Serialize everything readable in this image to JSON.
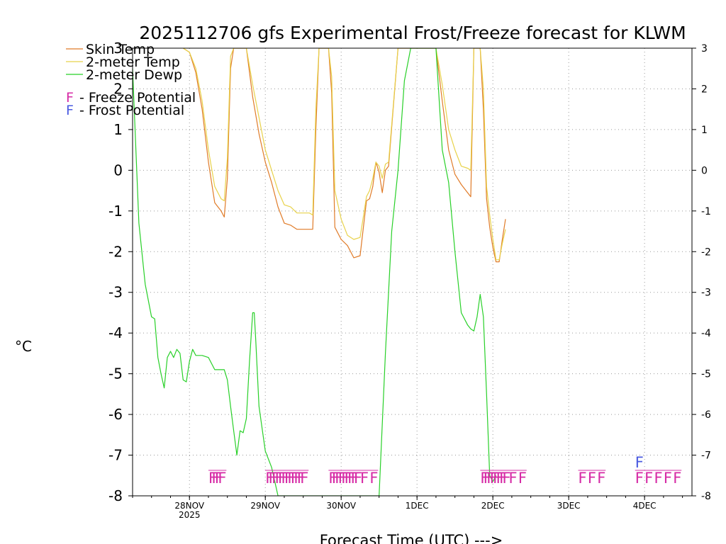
{
  "chart_data": {
    "type": "line",
    "title": "2025112706 gfs Experimental Frost/Freeze forecast for KLWM",
    "xlabel": "Forecast Time (UTC) --->",
    "ylabel": "°C",
    "ylim": [
      -8,
      3
    ],
    "xlim": [
      0,
      177
    ],
    "x_units": "hours since 2025-11-27 06 UTC",
    "grid": true,
    "y_ticks": [
      "-8",
      "-7",
      "-6",
      "-5",
      "-4",
      "-3",
      "-2",
      "-1",
      "0",
      "1",
      "2",
      "3"
    ],
    "x_ticks": [
      {
        "hour": 18,
        "label": "28NOV",
        "sub": "2025"
      },
      {
        "hour": 42,
        "label": "29NOV",
        "sub": ""
      },
      {
        "hour": 66,
        "label": "30NOV",
        "sub": ""
      },
      {
        "hour": 90,
        "label": "1DEC",
        "sub": ""
      },
      {
        "hour": 114,
        "label": "2DEC",
        "sub": ""
      },
      {
        "hour": 138,
        "label": "3DEC",
        "sub": ""
      },
      {
        "hour": 162,
        "label": "4DEC",
        "sub": ""
      }
    ],
    "series": [
      {
        "name": "Skin Temp",
        "color": "#e07b28",
        "x": [
          16,
          18,
          20,
          22,
          24,
          26,
          28,
          29,
          30,
          31,
          32,
          33,
          36,
          38,
          40,
          42,
          44,
          46,
          48,
          50,
          52,
          54,
          56,
          57,
          58,
          59,
          60,
          61,
          62,
          63,
          64,
          66,
          68,
          70,
          72,
          74,
          75,
          76,
          77,
          78,
          79,
          80,
          81,
          84,
          86,
          88,
          90,
          91,
          92,
          93,
          94,
          96,
          98,
          100,
          102,
          104,
          106,
          107,
          108,
          109,
          110,
          111,
          112,
          113,
          114,
          115,
          116,
          117,
          118
        ],
        "y": [
          3.0,
          2.9,
          2.4,
          1.5,
          0.2,
          -0.8,
          -1.0,
          -1.15,
          -0.2,
          2.5,
          3.0,
          3.0,
          3.0,
          1.8,
          0.9,
          0.2,
          -0.3,
          -0.9,
          -1.3,
          -1.35,
          -1.45,
          -1.45,
          -1.45,
          -1.45,
          1.0,
          3.0,
          3.0,
          3.0,
          3.0,
          1.9,
          -1.4,
          -1.7,
          -1.85,
          -2.15,
          -2.1,
          -0.75,
          -0.7,
          -0.4,
          0.2,
          -0.05,
          -0.55,
          0.0,
          0.1,
          3.0,
          3.0,
          3.0,
          3.0,
          3.0,
          3.0,
          3.0,
          3.0,
          3.0,
          1.7,
          0.5,
          -0.1,
          -0.35,
          -0.55,
          -0.65,
          3.0,
          3.0,
          3.0,
          1.5,
          -0.7,
          -1.4,
          -1.9,
          -2.25,
          -2.25,
          -1.7,
          -1.2
        ]
      },
      {
        "name": "2-meter Temp",
        "color": "#e8d24a",
        "x": [
          16,
          18,
          20,
          22,
          24,
          26,
          28,
          29,
          30,
          31,
          32,
          33,
          36,
          38,
          40,
          42,
          44,
          46,
          48,
          50,
          52,
          54,
          56,
          57,
          58,
          59,
          60,
          61,
          62,
          63,
          64,
          66,
          68,
          70,
          72,
          74,
          75,
          76,
          77,
          78,
          79,
          80,
          81,
          84,
          86,
          88,
          90,
          91,
          92,
          93,
          94,
          96,
          98,
          100,
          102,
          104,
          106,
          107,
          108,
          109,
          110,
          111,
          112,
          113,
          114,
          115,
          116,
          117,
          118
        ],
        "y": [
          3.0,
          2.9,
          2.5,
          1.7,
          0.5,
          -0.4,
          -0.7,
          -0.75,
          0.3,
          2.8,
          3.0,
          3.0,
          3.0,
          2.1,
          1.3,
          0.5,
          0.0,
          -0.5,
          -0.85,
          -0.9,
          -1.05,
          -1.05,
          -1.05,
          -1.1,
          1.5,
          3.0,
          3.0,
          3.0,
          3.0,
          2.3,
          -0.5,
          -1.2,
          -1.6,
          -1.7,
          -1.65,
          -0.65,
          -0.5,
          -0.2,
          0.2,
          0.1,
          -0.2,
          0.15,
          0.2,
          3.0,
          3.0,
          3.0,
          3.0,
          3.0,
          3.0,
          3.0,
          3.0,
          3.0,
          2.1,
          1.0,
          0.5,
          0.1,
          0.05,
          0.0,
          3.0,
          3.0,
          3.0,
          2.0,
          -0.4,
          -1.1,
          -1.7,
          -2.2,
          -2.2,
          -1.8,
          -1.45
        ]
      },
      {
        "name": "2-meter Dewp",
        "color": "#28d028",
        "x": [
          0,
          2,
          4,
          6,
          7,
          8,
          9,
          10,
          11,
          12,
          13,
          14,
          15,
          16,
          17,
          18,
          19,
          20,
          21,
          22,
          24,
          26,
          28,
          29,
          30,
          31,
          32,
          33,
          34,
          35,
          36,
          37,
          38,
          38.5,
          39,
          40,
          42,
          44,
          46,
          78,
          80,
          82,
          84,
          86,
          88,
          90,
          92,
          94,
          96,
          98,
          100,
          102,
          104,
          106,
          107,
          108,
          109,
          110,
          111,
          112,
          113,
          114,
          115
        ],
        "y": [
          2.5,
          -1.3,
          -2.8,
          -3.6,
          -3.65,
          -4.6,
          -5.0,
          -5.35,
          -4.6,
          -4.45,
          -4.6,
          -4.4,
          -4.5,
          -5.15,
          -5.2,
          -4.7,
          -4.4,
          -4.55,
          -4.55,
          -4.55,
          -4.6,
          -4.9,
          -4.9,
          -4.9,
          -5.15,
          -5.8,
          -6.4,
          -7.0,
          -6.4,
          -6.45,
          -6.1,
          -4.7,
          -3.5,
          -3.5,
          -4.2,
          -5.8,
          -6.9,
          -7.3,
          -8.0,
          -8.0,
          -4.5,
          -1.5,
          0.0,
          2.2,
          3.0,
          3.0,
          3.0,
          3.0,
          3.0,
          0.5,
          -0.3,
          -2.0,
          -3.5,
          -3.8,
          -3.9,
          -3.95,
          -3.6,
          -3.05,
          -3.6,
          -5.5,
          -7.5,
          -7.65,
          -7.5
        ]
      }
    ],
    "legend": [
      {
        "label": "Skin Temp",
        "color": "#e07b28"
      },
      {
        "label": "2-meter Temp",
        "color": "#e8d24a"
      },
      {
        "label": "2-meter Dewp",
        "color": "#28d028"
      }
    ],
    "flag_legend": [
      {
        "letter": "F",
        "text": " - Freeze Potential",
        "color": "#d62aa5"
      },
      {
        "letter": "F",
        "text": " - Frost Potential",
        "color": "#4a5ae0"
      }
    ],
    "freeze_flags": [
      {
        "hours": [
          24,
          25,
          26,
          27
        ],
        "color": "#d62aa5"
      },
      {
        "hours": [
          42,
          43,
          44,
          45,
          46,
          47,
          48,
          49,
          50,
          51,
          52,
          53
        ],
        "color": "#d62aa5"
      },
      {
        "hours": [
          62,
          63,
          64,
          65,
          66,
          67,
          68,
          69,
          70,
          72,
          75
        ],
        "color": "#d62aa5"
      },
      {
        "hours": [
          110,
          111,
          112,
          113,
          114,
          115,
          116,
          117,
          119,
          122
        ],
        "color": "#d62aa5"
      },
      {
        "hours": [
          141,
          144,
          147
        ],
        "color": "#d62aa5"
      },
      {
        "hours": [
          159,
          162,
          165,
          168,
          171
        ],
        "color": "#d62aa5"
      }
    ],
    "frost_flags": [
      {
        "hours": [
          159
        ],
        "color": "#4a5ae0"
      }
    ]
  }
}
